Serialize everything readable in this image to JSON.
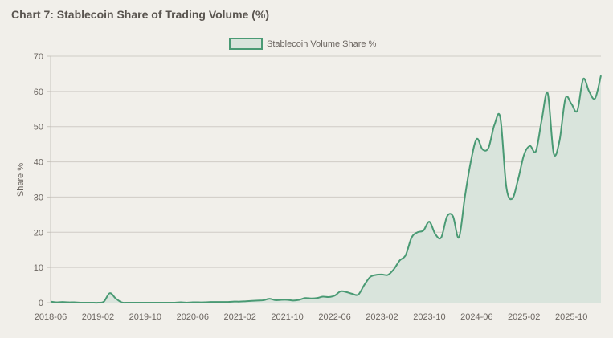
{
  "chart_data": {
    "type": "area",
    "title": "Chart 7: Stablecoin Share of Trading Volume (%)",
    "xlabel": "",
    "ylabel": "Share %",
    "ylim": [
      0,
      70
    ],
    "yticks": [
      0,
      10,
      20,
      30,
      40,
      50,
      60,
      70
    ],
    "grid": true,
    "legend_position": "top-center",
    "line_color": "#4a9a74",
    "fill_color": "#d9e4dc",
    "xtick_labels": [
      "2018-06",
      "2019-02",
      "2019-10",
      "2020-06",
      "2021-02",
      "2021-10",
      "2022-06",
      "2023-02",
      "2023-10",
      "2024-06",
      "2025-02",
      "2025-10"
    ],
    "series": [
      {
        "name": "Stablecoin Volume Share %",
        "x": [
          "2018-06",
          "2018-07",
          "2018-08",
          "2018-09",
          "2018-10",
          "2018-11",
          "2018-12",
          "2019-01",
          "2019-02",
          "2019-03",
          "2019-04",
          "2019-05",
          "2019-06",
          "2019-07",
          "2019-08",
          "2019-09",
          "2019-10",
          "2019-11",
          "2019-12",
          "2020-01",
          "2020-02",
          "2020-03",
          "2020-04",
          "2020-05",
          "2020-06",
          "2020-07",
          "2020-08",
          "2020-09",
          "2020-10",
          "2020-11",
          "2020-12",
          "2021-01",
          "2021-02",
          "2021-03",
          "2021-04",
          "2021-05",
          "2021-06",
          "2021-07",
          "2021-08",
          "2021-09",
          "2021-10",
          "2021-11",
          "2021-12",
          "2022-01",
          "2022-02",
          "2022-03",
          "2022-04",
          "2022-05",
          "2022-06",
          "2022-07",
          "2022-08",
          "2022-09",
          "2022-10",
          "2022-11",
          "2022-12",
          "2023-01",
          "2023-02",
          "2023-03",
          "2023-04",
          "2023-05",
          "2023-06",
          "2023-07",
          "2023-08",
          "2023-09",
          "2023-10",
          "2023-11",
          "2023-12",
          "2024-01",
          "2024-02",
          "2024-03",
          "2024-04",
          "2024-05",
          "2024-06",
          "2024-07",
          "2024-08",
          "2024-09",
          "2024-10",
          "2024-11",
          "2024-12",
          "2025-01",
          "2025-02",
          "2025-03",
          "2025-04",
          "2025-05",
          "2025-06",
          "2025-07",
          "2025-08",
          "2025-09",
          "2025-10",
          "2025-11",
          "2025-12",
          "2026-01",
          "2026-02",
          "2026-03"
        ],
        "values": [
          0.3,
          0.1,
          0.2,
          0.1,
          0.1,
          0.0,
          0.0,
          0.0,
          0.0,
          0.3,
          2.7,
          1.2,
          0.1,
          0.0,
          0.0,
          0.0,
          0.0,
          0.0,
          0.0,
          0.0,
          0.0,
          0.0,
          0.1,
          0.0,
          0.1,
          0.1,
          0.1,
          0.2,
          0.2,
          0.2,
          0.2,
          0.3,
          0.3,
          0.4,
          0.5,
          0.6,
          0.7,
          1.1,
          0.7,
          0.8,
          0.8,
          0.6,
          0.8,
          1.3,
          1.2,
          1.3,
          1.7,
          1.6,
          2.0,
          3.2,
          3.0,
          2.5,
          2.3,
          5.0,
          7.3,
          7.9,
          8.0,
          7.9,
          9.5,
          12.0,
          13.5,
          18.5,
          20.0,
          20.5,
          23.0,
          19.5,
          18.5,
          24.5,
          24.5,
          18.5,
          30.0,
          40.0,
          46.5,
          43.5,
          44.0,
          50.5,
          52.5,
          33.0,
          29.5,
          35.0,
          42.0,
          44.5,
          43.0,
          52.0,
          59.5,
          42.5,
          46.0,
          58.0,
          56.5,
          54.5,
          63.5,
          60.0,
          58.0,
          64.5
        ]
      }
    ]
  }
}
